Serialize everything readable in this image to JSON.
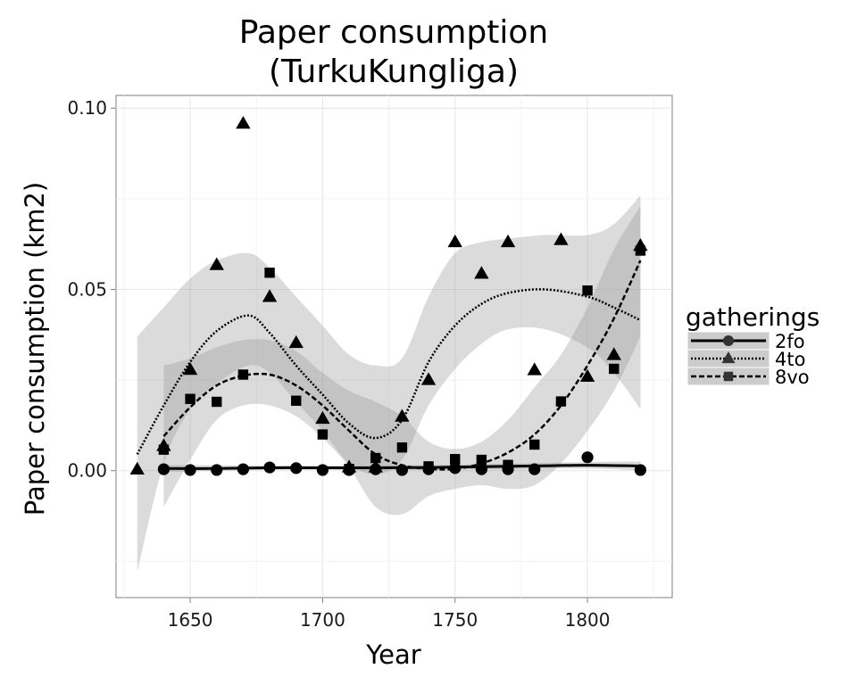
{
  "chart_data": {
    "type": "scatter",
    "title": [
      "Paper consumption",
      "(TurkuKungliga)"
    ],
    "xlabel": "Year",
    "ylabel": "Paper consumption (km2)",
    "xlim": [
      1622,
      1832
    ],
    "ylim": [
      -0.035,
      0.1035
    ],
    "xticks": [
      1650,
      1700,
      1750,
      1800
    ],
    "xtick_labels": [
      "1650",
      "1700",
      "1750",
      "1800"
    ],
    "yticks": [
      0.0,
      0.05,
      0.1
    ],
    "ytick_labels": [
      "0.00",
      "0.05",
      "0.10"
    ],
    "grid": true,
    "legend": {
      "title": "gatherings",
      "position": "right",
      "items": [
        {
          "label": "2fo",
          "shape": "circle",
          "linetype": "solid"
        },
        {
          "label": "4to",
          "shape": "triangle",
          "linetype": "dotted"
        },
        {
          "label": "8vo",
          "shape": "square",
          "linetype": "dashed"
        }
      ]
    },
    "series": [
      {
        "name": "2fo",
        "shape": "circle",
        "points": [
          [
            1640,
            0.0004
          ],
          [
            1650,
            0.0002
          ],
          [
            1660,
            0.0002
          ],
          [
            1670,
            0.0004
          ],
          [
            1680,
            0.0009
          ],
          [
            1690,
            0.0007
          ],
          [
            1700,
            0.0002
          ],
          [
            1710,
            0.0002
          ],
          [
            1720,
            0.0004
          ],
          [
            1730,
            0.0002
          ],
          [
            1740,
            0.0004
          ],
          [
            1750,
            0.0007
          ],
          [
            1760,
            0.0004
          ],
          [
            1770,
            0.0004
          ],
          [
            1780,
            0.0004
          ],
          [
            1800,
            0.0037
          ],
          [
            1820,
            0.0002
          ]
        ],
        "smooth": [
          [
            1640,
            0.0006
          ],
          [
            1660,
            0.0006
          ],
          [
            1680,
            0.0008
          ],
          [
            1700,
            0.0008
          ],
          [
            1720,
            0.0008
          ],
          [
            1740,
            0.0009
          ],
          [
            1760,
            0.0011
          ],
          [
            1780,
            0.0013
          ],
          [
            1800,
            0.0015
          ],
          [
            1820,
            0.0013
          ]
        ],
        "band": [
          [
            1640,
            -0.0004,
            0.0016
          ],
          [
            1680,
            0.0002,
            0.0014
          ],
          [
            1720,
            0.0002,
            0.0014
          ],
          [
            1760,
            0.0004,
            0.0018
          ],
          [
            1800,
            0.0006,
            0.0024
          ],
          [
            1820,
            0.0,
            0.0026
          ]
        ]
      },
      {
        "name": "4to",
        "shape": "triangle",
        "points": [
          [
            1630,
            0.0003
          ],
          [
            1640,
            0.0068
          ],
          [
            1650,
            0.0278
          ],
          [
            1660,
            0.0567
          ],
          [
            1670,
            0.0957
          ],
          [
            1680,
            0.0479
          ],
          [
            1690,
            0.0352
          ],
          [
            1700,
            0.0143
          ],
          [
            1710,
            0.0009
          ],
          [
            1720,
            0.0009
          ],
          [
            1730,
            0.0149
          ],
          [
            1740,
            0.025
          ],
          [
            1750,
            0.063
          ],
          [
            1760,
            0.0543
          ],
          [
            1770,
            0.063
          ],
          [
            1780,
            0.0277
          ],
          [
            1790,
            0.0636
          ],
          [
            1800,
            0.0259
          ],
          [
            1810,
            0.0319
          ],
          [
            1820,
            0.062
          ]
        ],
        "smooth": [
          [
            1630,
            0.0045
          ],
          [
            1640,
            0.018
          ],
          [
            1650,
            0.03
          ],
          [
            1660,
            0.0385
          ],
          [
            1672,
            0.0428
          ],
          [
            1680,
            0.038
          ],
          [
            1690,
            0.029
          ],
          [
            1700,
            0.021
          ],
          [
            1710,
            0.013
          ],
          [
            1720,
            0.009
          ],
          [
            1730,
            0.014
          ],
          [
            1740,
            0.03
          ],
          [
            1750,
            0.04
          ],
          [
            1760,
            0.046
          ],
          [
            1770,
            0.049
          ],
          [
            1784,
            0.05
          ],
          [
            1800,
            0.048
          ],
          [
            1810,
            0.045
          ],
          [
            1820,
            0.0415
          ]
        ],
        "band": [
          [
            1630,
            -0.028,
            0.037
          ],
          [
            1640,
            0.002,
            0.045
          ],
          [
            1650,
            0.017,
            0.053
          ],
          [
            1660,
            0.024,
            0.058
          ],
          [
            1672,
            0.029,
            0.06
          ],
          [
            1680,
            0.027,
            0.056
          ],
          [
            1690,
            0.019,
            0.048
          ],
          [
            1700,
            0.011,
            0.04
          ],
          [
            1710,
            0.002,
            0.032
          ],
          [
            1720,
            -0.001,
            0.029
          ],
          [
            1730,
            0.003,
            0.031
          ],
          [
            1740,
            0.018,
            0.048
          ],
          [
            1750,
            0.028,
            0.06
          ],
          [
            1760,
            0.035,
            0.063
          ],
          [
            1770,
            0.039,
            0.064
          ],
          [
            1784,
            0.039,
            0.065
          ],
          [
            1800,
            0.034,
            0.065
          ],
          [
            1810,
            0.027,
            0.068
          ],
          [
            1820,
            0.017,
            0.076
          ]
        ]
      },
      {
        "name": "8vo",
        "shape": "square",
        "points": [
          [
            1640,
            0.0058
          ],
          [
            1650,
            0.0198
          ],
          [
            1660,
            0.019
          ],
          [
            1670,
            0.0265
          ],
          [
            1680,
            0.0546
          ],
          [
            1690,
            0.0193
          ],
          [
            1700,
            0.01
          ],
          [
            1710,
            0.0005
          ],
          [
            1720,
            0.0035
          ],
          [
            1730,
            0.0064
          ],
          [
            1740,
            0.0012
          ],
          [
            1750,
            0.0032
          ],
          [
            1760,
            0.003
          ],
          [
            1770,
            0.0016
          ],
          [
            1780,
            0.0072
          ],
          [
            1790,
            0.0191
          ],
          [
            1800,
            0.0497
          ],
          [
            1810,
            0.0281
          ],
          [
            1820,
            0.0607
          ]
        ],
        "smooth": [
          [
            1640,
            0.0095
          ],
          [
            1650,
            0.0175
          ],
          [
            1660,
            0.0235
          ],
          [
            1670,
            0.0262
          ],
          [
            1680,
            0.0265
          ],
          [
            1690,
            0.0235
          ],
          [
            1700,
            0.018
          ],
          [
            1710,
            0.011
          ],
          [
            1720,
            0.0045
          ],
          [
            1730,
            0.0015
          ],
          [
            1740,
            0.0005
          ],
          [
            1750,
            0.0005
          ],
          [
            1760,
            0.002
          ],
          [
            1770,
            0.005
          ],
          [
            1780,
            0.01
          ],
          [
            1790,
            0.018
          ],
          [
            1800,
            0.029
          ],
          [
            1810,
            0.042
          ],
          [
            1820,
            0.058
          ]
        ],
        "band": [
          [
            1640,
            -0.01,
            0.029
          ],
          [
            1650,
            0.003,
            0.031
          ],
          [
            1660,
            0.014,
            0.034
          ],
          [
            1670,
            0.018,
            0.036
          ],
          [
            1680,
            0.018,
            0.036
          ],
          [
            1690,
            0.015,
            0.033
          ],
          [
            1700,
            0.009,
            0.027
          ],
          [
            1710,
            0.001,
            0.022
          ],
          [
            1720,
            -0.01,
            0.019
          ],
          [
            1730,
            -0.012,
            0.015
          ],
          [
            1740,
            -0.007,
            0.008
          ],
          [
            1750,
            -0.005,
            0.006
          ],
          [
            1760,
            -0.004,
            0.008
          ],
          [
            1770,
            -0.005,
            0.014
          ],
          [
            1780,
            -0.004,
            0.023
          ],
          [
            1790,
            0.002,
            0.032
          ],
          [
            1800,
            0.011,
            0.045
          ],
          [
            1810,
            0.022,
            0.061
          ],
          [
            1820,
            0.037,
            0.073
          ]
        ]
      }
    ]
  }
}
